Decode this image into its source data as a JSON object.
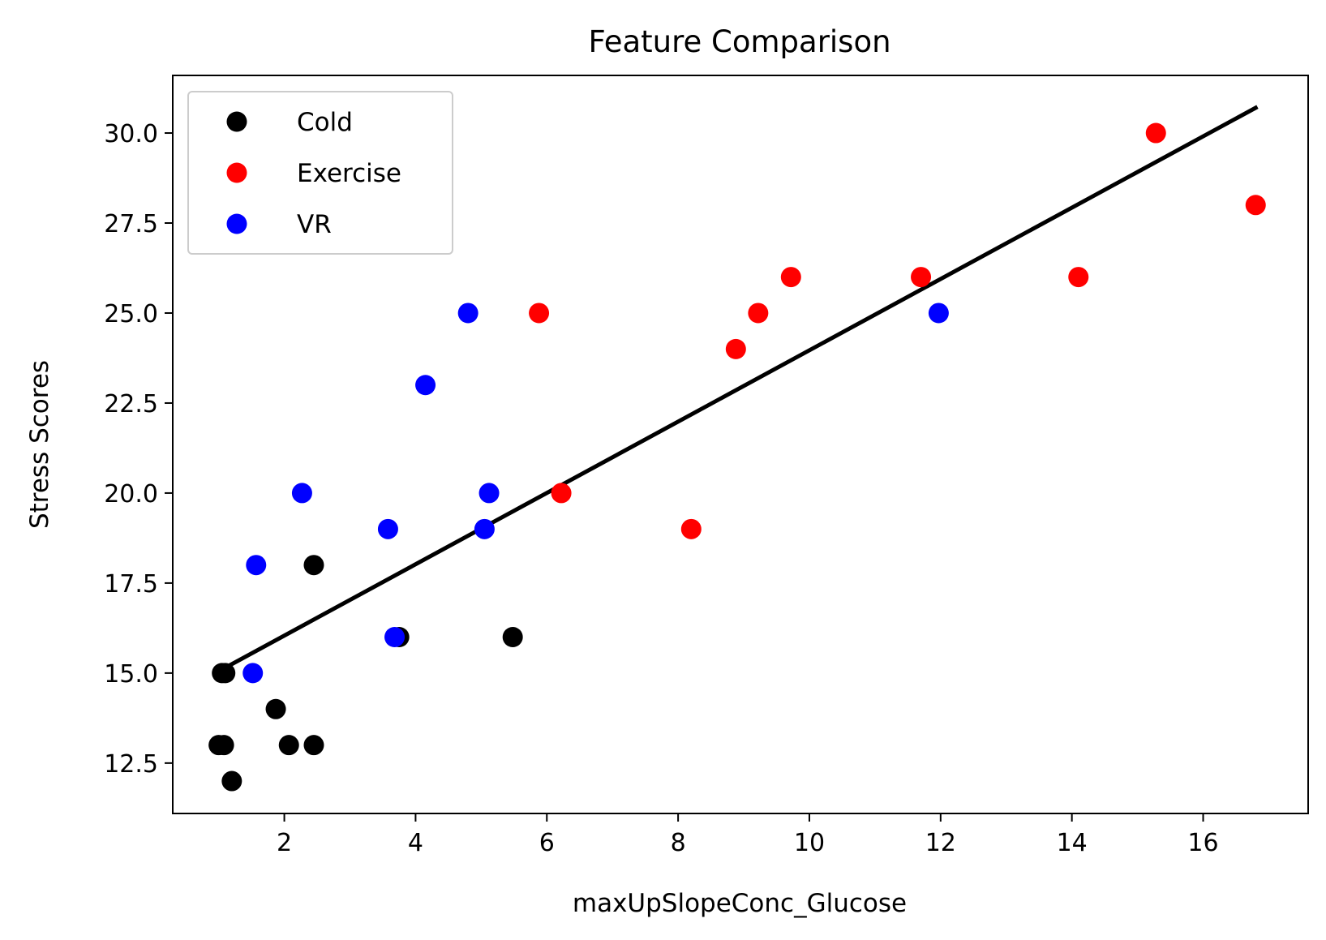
{
  "chart_data": {
    "type": "scatter",
    "title": "Feature Comparison",
    "xlabel": "maxUpSlopeConc_Glucose",
    "ylabel": "Stress Scores",
    "xlim": [
      0.3,
      17.6
    ],
    "ylim": [
      11.1,
      31.6
    ],
    "x_ticks": [
      2,
      4,
      6,
      8,
      10,
      12,
      14,
      16
    ],
    "y_ticks": [
      12.5,
      15.0,
      17.5,
      20.0,
      22.5,
      25.0,
      27.5,
      30.0
    ],
    "y_tick_labels": [
      "12.5",
      "15.0",
      "17.5",
      "20.0",
      "22.5",
      "25.0",
      "27.5",
      "30.0"
    ],
    "grid": false,
    "legend_position": "top-left",
    "series": [
      {
        "name": "Cold",
        "color": "#000000",
        "points": [
          [
            1.0,
            13
          ],
          [
            1.08,
            13
          ],
          [
            1.2,
            12
          ],
          [
            1.05,
            15
          ],
          [
            1.1,
            15
          ],
          [
            1.87,
            14
          ],
          [
            2.07,
            13
          ],
          [
            2.45,
            13
          ],
          [
            2.45,
            18
          ],
          [
            3.75,
            16
          ],
          [
            5.48,
            16
          ]
        ]
      },
      {
        "name": "Exercise",
        "color": "#ff0000",
        "points": [
          [
            5.88,
            25
          ],
          [
            6.22,
            20
          ],
          [
            8.2,
            19
          ],
          [
            8.88,
            24
          ],
          [
            9.22,
            25
          ],
          [
            9.72,
            26
          ],
          [
            11.7,
            26
          ],
          [
            14.1,
            26
          ],
          [
            15.28,
            30
          ],
          [
            16.8,
            28
          ]
        ]
      },
      {
        "name": "VR",
        "color": "#0000ff",
        "points": [
          [
            1.52,
            15
          ],
          [
            1.57,
            18
          ],
          [
            2.27,
            20
          ],
          [
            3.58,
            19
          ],
          [
            3.68,
            16
          ],
          [
            4.15,
            23
          ],
          [
            4.8,
            25
          ],
          [
            5.05,
            19
          ],
          [
            5.12,
            20
          ],
          [
            11.97,
            25
          ]
        ]
      }
    ],
    "fit_line": {
      "color": "#000000",
      "points": [
        [
          1.05,
          15.1
        ],
        [
          16.8,
          30.7
        ]
      ]
    }
  }
}
